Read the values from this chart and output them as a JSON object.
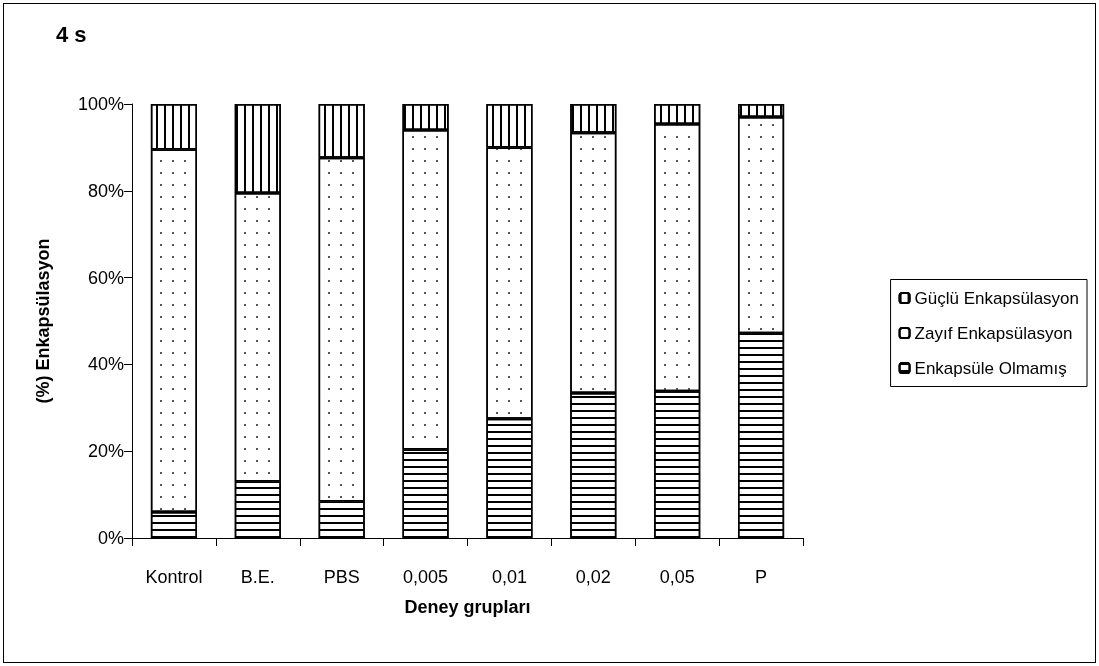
{
  "chart_data": {
    "type": "bar",
    "title": "4 s",
    "xlabel": "Deney grupları",
    "ylabel": "(%) Enkapsülasyon",
    "categories": [
      "Kontrol",
      "B.E.",
      "PBS",
      "0,005",
      "0,01",
      "0,02",
      "0,05",
      "P"
    ],
    "stacked": true,
    "legend": "right",
    "grid": false,
    "ylim": [
      0,
      100
    ],
    "yticks": [
      {
        "value": 0,
        "label": "0%"
      },
      {
        "value": 20,
        "label": "20%"
      },
      {
        "value": 40,
        "label": "40%"
      },
      {
        "value": 60,
        "label": "60%"
      },
      {
        "value": 80,
        "label": "80%"
      },
      {
        "value": 100,
        "label": "100%"
      }
    ],
    "series": [
      {
        "name": "Enkapsüle Olmamış",
        "color": "#ffffff",
        "values": [
          6,
          13,
          8.4,
          20.4,
          27.5,
          33.4,
          33.8,
          47.2
        ]
      },
      {
        "name": "Zayıf Enkapsülasyon",
        "color": "#ffffff",
        "values": [
          83.5,
          66.5,
          79.2,
          73.6,
          62.5,
          60,
          61.6,
          49.8
        ]
      },
      {
        "name": "Güçlü Enkapsülasyon",
        "color": "#ffffff",
        "values": [
          10.5,
          20.5,
          12.4,
          6,
          10,
          6.6,
          4.6,
          3
        ]
      }
    ]
  }
}
